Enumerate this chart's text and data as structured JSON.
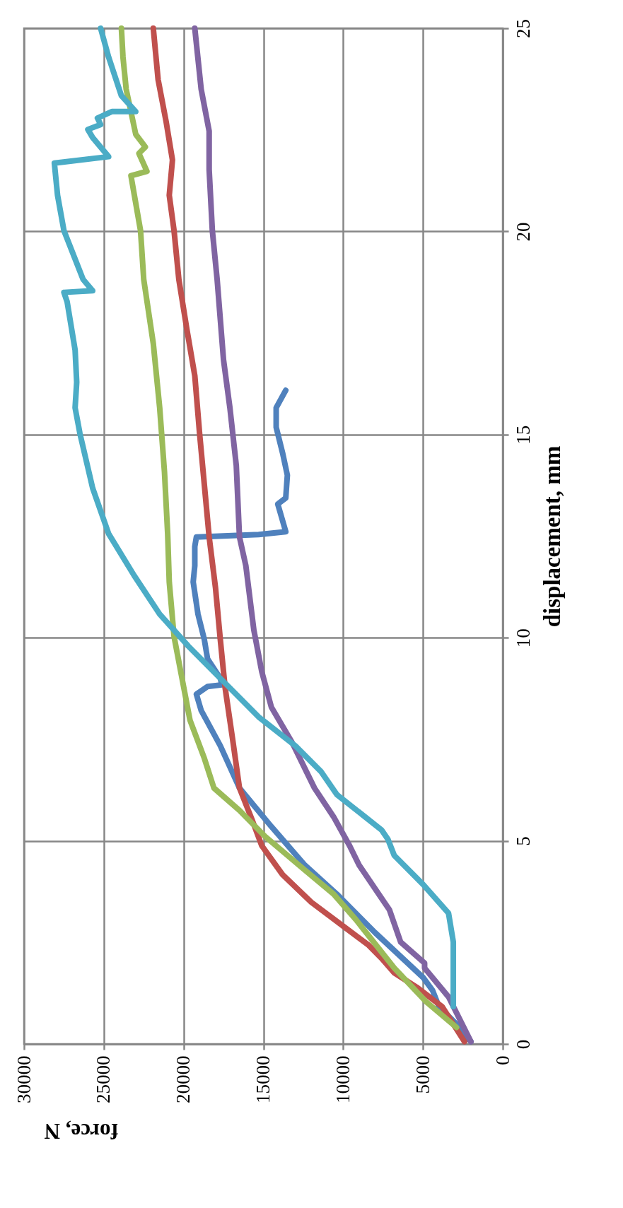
{
  "chart_data": {
    "type": "line",
    "xlabel": "force, N",
    "ylabel": "displacement, mm",
    "xlim": [
      30000,
      0
    ],
    "xticks": [
      30000,
      25000,
      20000,
      15000,
      10000,
      5000,
      0
    ],
    "ylim": [
      0,
      25
    ],
    "yticks": [
      0,
      5,
      10,
      15,
      20,
      25
    ],
    "grid": true,
    "series": [
      {
        "color": "#4f81bd",
        "x": [
          2000,
          2800,
          4000,
          4400,
          5000,
          8000,
          10400,
          12400,
          14500,
          16500,
          17700,
          18900,
          19200,
          18500,
          17600,
          17700,
          18500,
          18700,
          19100,
          19400,
          19300,
          19300,
          19200,
          15300,
          13600,
          14100,
          13600,
          13500,
          13800,
          14200,
          14200,
          13600
        ],
        "values": [
          0.06,
          0.45,
          0.92,
          1.32,
          1.64,
          2.74,
          3.69,
          4.4,
          5.35,
          6.3,
          7.34,
          8.21,
          8.61,
          8.8,
          8.84,
          9.0,
          9.48,
          9.95,
          10.58,
          11.37,
          11.77,
          12.24,
          12.48,
          12.54,
          12.61,
          13.29,
          13.44,
          14.0,
          14.55,
          15.18,
          15.66,
          16.09
        ]
      },
      {
        "color": "#c0504d",
        "x": [
          2400,
          3800,
          5400,
          6800,
          7600,
          8400,
          10000,
          12000,
          13800,
          15100,
          15700,
          16500,
          16900,
          17400,
          17700,
          18000,
          18400,
          18700,
          19000,
          19300,
          19800,
          20300,
          20600,
          20900,
          20700,
          21100,
          21600,
          21900
        ],
        "values": [
          0.06,
          0.92,
          1.4,
          1.75,
          2.11,
          2.43,
          2.9,
          3.49,
          4.17,
          4.88,
          5.51,
          6.3,
          7.42,
          8.77,
          9.95,
          11.22,
          12.48,
          13.76,
          15.03,
          16.45,
          17.6,
          18.82,
          20.02,
          20.89,
          21.76,
          22.71,
          23.74,
          25.0
        ]
      },
      {
        "color": "#9bbb59",
        "x": [
          2900,
          4800,
          6800,
          9200,
          10600,
          12400,
          14900,
          16500,
          18100,
          18700,
          19600,
          20100,
          20600,
          20900,
          21000,
          21200,
          21500,
          21900,
          22500,
          22700,
          23300,
          22300,
          22800,
          22400,
          23000,
          23600,
          23800,
          23900
        ],
        "values": [
          0.41,
          1.04,
          1.87,
          3.06,
          3.69,
          4.28,
          5.11,
          5.75,
          6.3,
          7.03,
          7.97,
          9.0,
          10.03,
          11.37,
          12.56,
          14.08,
          15.66,
          17.24,
          18.82,
          20.02,
          21.37,
          21.48,
          21.92,
          22.08,
          22.39,
          23.5,
          24.29,
          25.0
        ]
      },
      {
        "color": "#8064a2",
        "x": [
          2000,
          3400,
          4900,
          4900,
          6400,
          7100,
          9000,
          9600,
          10600,
          11800,
          13200,
          14500,
          15100,
          15600,
          16100,
          16500,
          16700,
          17100,
          17500,
          17900,
          18200,
          18400,
          18400,
          18900,
          19300
        ],
        "values": [
          0.06,
          1.16,
          1.87,
          1.99,
          2.51,
          3.3,
          4.4,
          4.88,
          5.59,
          6.3,
          7.42,
          8.29,
          9.16,
          10.19,
          11.77,
          12.48,
          14.24,
          15.66,
          16.84,
          18.82,
          20.02,
          21.52,
          22.47,
          23.5,
          25.0
        ]
      },
      {
        "color": "#4bacc6",
        "x": [
          3100,
          3100,
          3400,
          5000,
          6800,
          7200,
          7600,
          10400,
          11400,
          13000,
          15300,
          17500,
          19700,
          21500,
          23100,
          24700,
          25700,
          26500,
          26800,
          26700,
          26800,
          27300,
          27500,
          25700,
          26300,
          27500,
          27900,
          28100,
          24700,
          25700,
          26000,
          25200,
          25400,
          24500,
          23000,
          23900,
          24700,
          25200
        ],
        "values": [
          0.92,
          2.51,
          3.22,
          3.93,
          4.64,
          5.04,
          5.27,
          6.14,
          6.71,
          7.34,
          8.05,
          8.92,
          9.79,
          10.58,
          11.53,
          12.56,
          13.68,
          15.03,
          15.66,
          16.29,
          17.08,
          18.27,
          18.5,
          18.54,
          18.82,
          20.02,
          20.89,
          21.68,
          21.84,
          22.31,
          22.51,
          22.63,
          22.79,
          22.95,
          22.95,
          23.34,
          24.29,
          25.0
        ]
      }
    ]
  }
}
